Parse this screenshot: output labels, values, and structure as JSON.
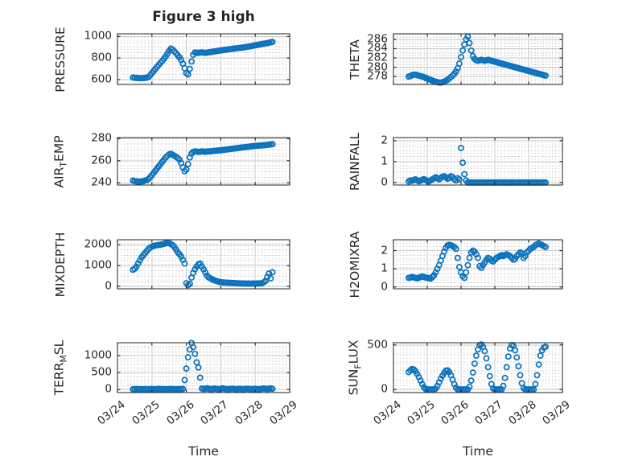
{
  "title": "Figure 3 high",
  "xlabel": "Time",
  "colors": {
    "marker": "#0c72bd",
    "axis": "#262626",
    "text": "#262626",
    "major_grid": "#cbcbcb",
    "minor_grid": "#c4c4c4",
    "background": "#ffffff"
  },
  "x_axis": {
    "label": "Time",
    "unit": "days after 03/24 00:00",
    "lim": [
      0,
      5
    ],
    "ticks": [
      0,
      1,
      2,
      3,
      4,
      5
    ],
    "tick_labels": [
      "03/24",
      "03/25",
      "03/26",
      "03/27",
      "03/28",
      "03/29"
    ],
    "minor_step": 0.1,
    "t": [
      0.45,
      0.5,
      0.55,
      0.6,
      0.65,
      0.7,
      0.75,
      0.8,
      0.85,
      0.9,
      0.95,
      1.0,
      1.05,
      1.1,
      1.15,
      1.2,
      1.25,
      1.3,
      1.35,
      1.4,
      1.45,
      1.5,
      1.55,
      1.6,
      1.65,
      1.7,
      1.75,
      1.8,
      1.85,
      1.9,
      1.95,
      2.0,
      2.05,
      2.1,
      2.15,
      2.2,
      2.25,
      2.3,
      2.35,
      2.4,
      2.45,
      2.5,
      2.55,
      2.6,
      2.65,
      2.7,
      2.75,
      2.8,
      2.85,
      2.9,
      2.95,
      3.0,
      3.05,
      3.1,
      3.15,
      3.2,
      3.25,
      3.3,
      3.35,
      3.4,
      3.45,
      3.5,
      3.55,
      3.6,
      3.65,
      3.7,
      3.75,
      3.8,
      3.85,
      3.9,
      3.95,
      4.0,
      4.05,
      4.1,
      4.15,
      4.2,
      4.25,
      4.3,
      4.35,
      4.4,
      4.45,
      4.5
    ]
  },
  "chart_data": [
    {
      "id": "pressure",
      "type": "scatter",
      "name": "PRESSURE",
      "ylabel_segments": [
        {
          "text": "PRESSURE",
          "subscript": false
        }
      ],
      "ylim": [
        555,
        1025
      ],
      "yticks": [
        600,
        800,
        1000
      ],
      "ytick_labels": [
        "600",
        "800",
        "1000"
      ],
      "yminor_step": 50,
      "values": [
        620,
        617,
        615,
        614,
        613,
        613,
        614,
        616,
        618,
        625,
        640,
        660,
        680,
        700,
        718,
        737,
        756,
        774,
        793,
        815,
        840,
        866,
        888,
        878,
        862,
        845,
        826,
        806,
        782,
        748,
        705,
        660,
        648,
        700,
        768,
        830,
        852,
        850,
        848,
        851,
        853,
        850,
        848,
        850,
        854,
        856,
        858,
        861,
        863,
        866,
        868,
        871,
        873,
        875,
        877,
        880,
        882,
        884,
        886,
        888,
        890,
        892,
        894,
        896,
        898,
        900,
        903,
        906,
        909,
        912,
        915,
        918,
        921,
        924,
        927,
        930,
        933,
        936,
        939,
        942,
        946,
        950
      ]
    },
    {
      "id": "theta",
      "type": "scatter",
      "name": "THETA",
      "ylabel_segments": [
        {
          "text": "THETA",
          "subscript": false
        }
      ],
      "ylim": [
        276.3,
        287.2
      ],
      "yticks": [
        278,
        280,
        282,
        284,
        286
      ],
      "ytick_labels": [
        "278",
        "280",
        "282",
        "284",
        "286"
      ],
      "yminor_step": 0.5,
      "values": [
        278.0,
        278.1,
        278.3,
        278.4,
        278.4,
        278.3,
        278.2,
        278.1,
        278.0,
        277.9,
        277.7,
        277.6,
        277.4,
        277.3,
        277.1,
        277.0,
        276.9,
        276.8,
        276.7,
        276.7,
        276.8,
        276.9,
        277.1,
        277.3,
        277.6,
        277.9,
        278.2,
        278.6,
        279.1,
        279.8,
        280.8,
        282.2,
        283.6,
        284.9,
        286.0,
        286.6,
        285.2,
        283.6,
        282.4,
        281.8,
        281.5,
        281.4,
        281.5,
        281.6,
        281.5,
        281.4,
        281.5,
        281.6,
        281.5,
        281.4,
        281.3,
        281.2,
        281.1,
        281.0,
        280.9,
        280.8,
        280.7,
        280.6,
        280.5,
        280.4,
        280.3,
        280.2,
        280.1,
        280.0,
        279.9,
        279.8,
        279.7,
        279.6,
        279.5,
        279.4,
        279.3,
        279.2,
        279.1,
        279.0,
        278.9,
        278.8,
        278.7,
        278.6,
        278.5,
        278.4,
        278.3,
        278.2
      ]
    },
    {
      "id": "air-temp",
      "type": "scatter",
      "name": "AIR_TEMP",
      "ylabel_segments": [
        {
          "text": "AIR",
          "subscript": false
        },
        {
          "text": "T",
          "subscript": true
        },
        {
          "text": "EMP",
          "subscript": false
        }
      ],
      "ylim": [
        238,
        281
      ],
      "yticks": [
        240,
        260,
        280
      ],
      "ytick_labels": [
        "240",
        "260",
        "280"
      ],
      "yminor_step": 5,
      "values": [
        242.0,
        241.5,
        241.2,
        241.0,
        241.0,
        241.2,
        241.5,
        242.0,
        242.5,
        243.5,
        245,
        247,
        249,
        251,
        253,
        255,
        257,
        259,
        261,
        263,
        264.5,
        265.8,
        266.3,
        265.5,
        264.5,
        263.5,
        262.5,
        261.0,
        258.0,
        254.0,
        250.5,
        252.0,
        257.0,
        263.0,
        266.5,
        268.0,
        268.5,
        268.3,
        268.0,
        268.2,
        268.5,
        268.3,
        268.1,
        268.4,
        268.6,
        268.5,
        268.7,
        268.9,
        269.0,
        269.2,
        269.4,
        269.5,
        269.7,
        269.9,
        270.1,
        270.3,
        270.5,
        270.7,
        270.9,
        271.1,
        271.3,
        271.5,
        271.7,
        271.9,
        272.1,
        272.3,
        272.5,
        272.7,
        272.9,
        273.1,
        273.3,
        273.5,
        273.6,
        273.7,
        273.8,
        273.9,
        274.0,
        274.2,
        274.4,
        274.6,
        274.8,
        275.0
      ]
    },
    {
      "id": "rainfall",
      "type": "scatter",
      "name": "RAINFALL",
      "ylabel_segments": [
        {
          "text": "RAINFALL",
          "subscript": false
        }
      ],
      "ylim": [
        -0.12,
        2.15
      ],
      "yticks": [
        0,
        1,
        2
      ],
      "ytick_labels": [
        "0",
        "1",
        "2"
      ],
      "yminor_step": 0.25,
      "values": [
        0.05,
        0.1,
        0.08,
        0.12,
        0.15,
        0.1,
        0.06,
        0.09,
        0.13,
        0.16,
        0.12,
        0.08,
        0.05,
        0.1,
        0.15,
        0.2,
        0.25,
        0.2,
        0.15,
        0.22,
        0.28,
        0.3,
        0.25,
        0.18,
        0.22,
        0.3,
        0.26,
        0.16,
        0.1,
        0.2,
        0.15,
        1.65,
        0.95,
        0.4,
        0.1,
        0,
        0,
        0,
        0,
        0,
        0,
        0,
        0,
        0,
        0,
        0,
        0,
        0,
        0,
        0,
        0,
        0,
        0,
        0,
        0,
        0,
        0,
        0,
        0,
        0,
        0,
        0,
        0,
        0,
        0,
        0,
        0,
        0,
        0,
        0,
        0,
        0,
        0,
        0,
        0,
        0,
        0,
        0,
        0,
        0,
        0,
        0
      ]
    },
    {
      "id": "mixdepth",
      "type": "scatter",
      "name": "MIXDEPTH",
      "ylabel_segments": [
        {
          "text": "MIXDEPTH",
          "subscript": false
        }
      ],
      "ylim": [
        -120,
        2250
      ],
      "yticks": [
        0,
        1000,
        2000
      ],
      "ytick_labels": [
        "0",
        "1000",
        "2000"
      ],
      "yminor_step": 250,
      "values": [
        800,
        850,
        950,
        1100,
        1250,
        1400,
        1500,
        1600,
        1700,
        1800,
        1870,
        1920,
        1950,
        1970,
        1990,
        2000,
        2010,
        2030,
        2050,
        2080,
        2100,
        2080,
        2040,
        1990,
        1900,
        1780,
        1650,
        1550,
        1430,
        1280,
        1100,
        150,
        60,
        120,
        420,
        650,
        820,
        960,
        1060,
        1100,
        960,
        820,
        670,
        520,
        430,
        380,
        340,
        300,
        270,
        240,
        220,
        200,
        190,
        185,
        180,
        175,
        170,
        165,
        160,
        155,
        150,
        145,
        140,
        138,
        136,
        134,
        132,
        130,
        130,
        132,
        134,
        136,
        138,
        140,
        145,
        150,
        200,
        260,
        450,
        620,
        380,
        680
      ]
    },
    {
      "id": "h2omixra",
      "type": "scatter",
      "name": "H2OMIXRA",
      "ylabel_segments": [
        {
          "text": "H2OMIXRA",
          "subscript": false
        }
      ],
      "ylim": [
        -0.1,
        2.6
      ],
      "yticks": [
        0,
        1,
        2
      ],
      "ytick_labels": [
        "0",
        "1",
        "2"
      ],
      "yminor_step": 0.25,
      "values": [
        0.5,
        0.52,
        0.55,
        0.53,
        0.5,
        0.48,
        0.5,
        0.55,
        0.58,
        0.55,
        0.52,
        0.5,
        0.48,
        0.46,
        0.55,
        0.65,
        0.8,
        1.0,
        1.2,
        1.45,
        1.7,
        1.95,
        2.15,
        2.28,
        2.32,
        2.3,
        2.25,
        2.2,
        2.1,
        1.6,
        1.1,
        0.8,
        0.6,
        0.5,
        0.8,
        1.2,
        1.6,
        1.9,
        2.0,
        1.95,
        1.8,
        1.6,
        1.15,
        1.05,
        1.2,
        1.35,
        1.5,
        1.6,
        1.55,
        1.45,
        1.4,
        1.5,
        1.6,
        1.65,
        1.7,
        1.75,
        1.7,
        1.75,
        1.8,
        1.75,
        1.7,
        1.6,
        1.5,
        1.55,
        1.7,
        1.8,
        1.9,
        1.85,
        1.6,
        1.7,
        1.9,
        2.0,
        2.1,
        2.15,
        2.2,
        2.3,
        2.35,
        2.4,
        2.35,
        2.3,
        2.25,
        2.2
      ]
    },
    {
      "id": "terr-msl",
      "type": "scatter",
      "name": "TERR_MSL",
      "ylabel_segments": [
        {
          "text": "TERR",
          "subscript": false
        },
        {
          "text": "M",
          "subscript": true
        },
        {
          "text": "SL",
          "subscript": false
        }
      ],
      "ylim": [
        -90,
        1380
      ],
      "yticks": [
        0,
        500,
        1000
      ],
      "ytick_labels": [
        "0",
        "500",
        "1000"
      ],
      "yminor_step": 125,
      "values": [
        10,
        5,
        15,
        8,
        12,
        6,
        10,
        14,
        8,
        5,
        12,
        18,
        10,
        6,
        14,
        20,
        12,
        8,
        15,
        10,
        6,
        12,
        18,
        14,
        8,
        10,
        16,
        12,
        8,
        20,
        280,
        620,
        950,
        1180,
        1370,
        1250,
        1050,
        800,
        650,
        350,
        30,
        15,
        25,
        40,
        20,
        10,
        15,
        30,
        25,
        15,
        10,
        20,
        35,
        25,
        15,
        10,
        15,
        20,
        25,
        15,
        10,
        15,
        20,
        15,
        10,
        15,
        25,
        20,
        15,
        10,
        15,
        20,
        15,
        10,
        15,
        25,
        30,
        20,
        15,
        25,
        35,
        20
      ]
    },
    {
      "id": "sun-flux",
      "type": "scatter",
      "name": "SUN_FLUX",
      "ylabel_segments": [
        {
          "text": "SUN",
          "subscript": false
        },
        {
          "text": "F",
          "subscript": true
        },
        {
          "text": "LUX",
          "subscript": false
        }
      ],
      "ylim": [
        -35,
        525
      ],
      "yticks": [
        0,
        500
      ],
      "ytick_labels": [
        "0",
        "500"
      ],
      "yminor_step": 100,
      "values": [
        195,
        215,
        230,
        225,
        205,
        175,
        140,
        100,
        60,
        25,
        5,
        0,
        0,
        0,
        0,
        0,
        10,
        40,
        80,
        120,
        155,
        185,
        210,
        215,
        195,
        160,
        110,
        60,
        20,
        0,
        0,
        0,
        0,
        0,
        0,
        0,
        30,
        100,
        190,
        290,
        380,
        450,
        495,
        505,
        480,
        430,
        350,
        250,
        150,
        60,
        10,
        0,
        0,
        0,
        0,
        0,
        40,
        130,
        250,
        370,
        460,
        500,
        490,
        440,
        360,
        260,
        160,
        70,
        15,
        0,
        0,
        0,
        0,
        0,
        0,
        60,
        160,
        280,
        380,
        440,
        470,
        480
      ]
    }
  ]
}
